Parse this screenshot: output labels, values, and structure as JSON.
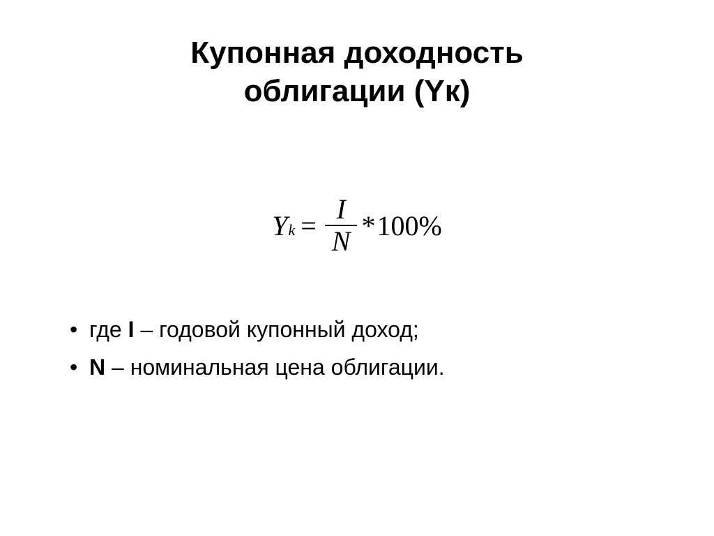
{
  "slide": {
    "title_line1": "Купонная доходность",
    "title_line2": "облигации (Yк)",
    "title_fontsize": 44,
    "title_color": "#000000",
    "background_color": "#ffffff"
  },
  "formula": {
    "lhs_base": "Y",
    "lhs_sub": "k",
    "equals": "=",
    "numerator": "I",
    "denominator": "N",
    "multiply": "*",
    "suffix": "100%",
    "fontsize": 40,
    "color": "#000000",
    "font_family": "Times New Roman"
  },
  "legend": {
    "items": [
      {
        "prefix": "где ",
        "var": "I",
        "text": " – годовой купонный доход;"
      },
      {
        "prefix": "",
        "var": "N",
        "text": " – номинальная цена облигации."
      }
    ],
    "fontsize": 32,
    "color": "#000000"
  }
}
